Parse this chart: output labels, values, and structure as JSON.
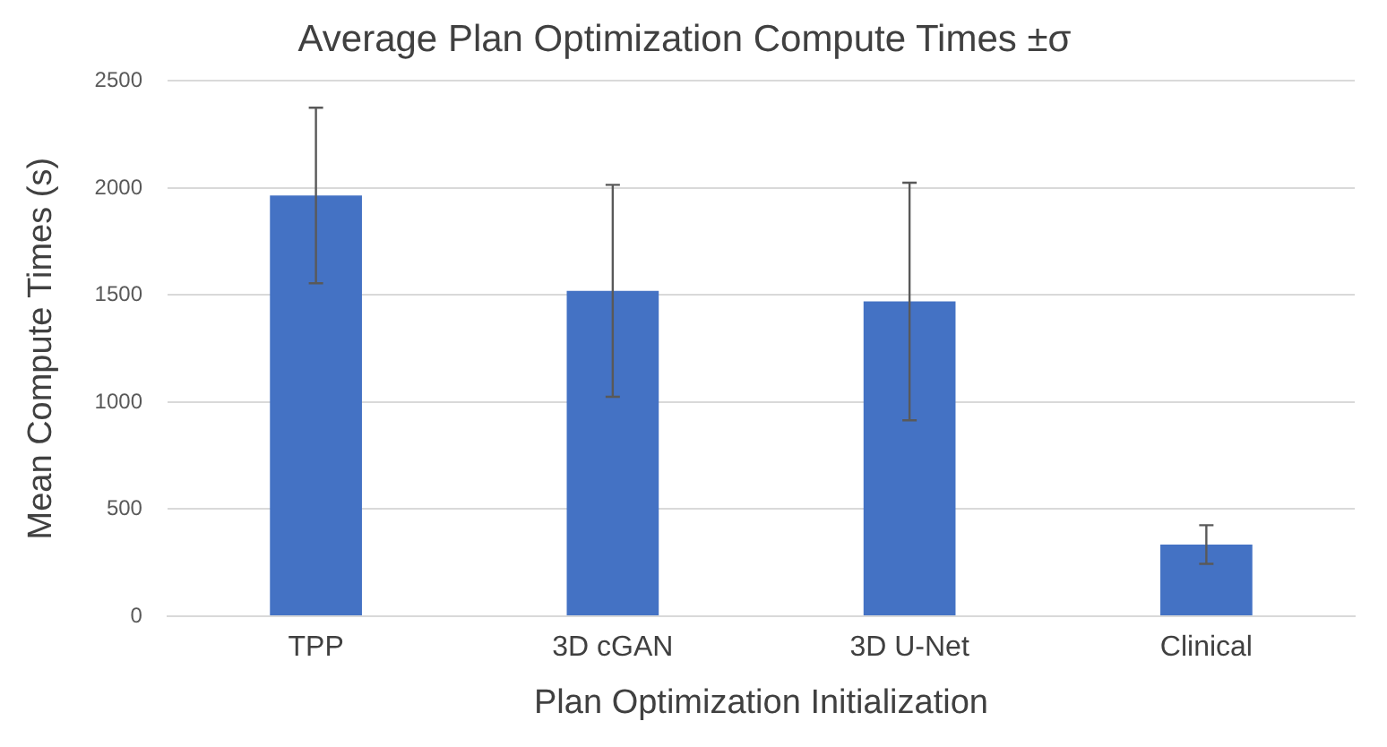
{
  "chart_data": {
    "type": "bar",
    "title": "Average Plan Optimization Compute Times ±σ",
    "xlabel": "Plan Optimization Initialization",
    "ylabel": "Mean Compute Times (s)",
    "categories": [
      "TPP",
      "3D cGAN",
      "3D U-Net",
      "Clinical"
    ],
    "values": [
      1965,
      1520,
      1470,
      335
    ],
    "errors": [
      410,
      495,
      555,
      90
    ],
    "color": "#4472c4",
    "ylim": [
      0,
      2500
    ],
    "yticks": [
      0,
      500,
      1000,
      1500,
      2000,
      2500
    ],
    "grid": "y"
  }
}
